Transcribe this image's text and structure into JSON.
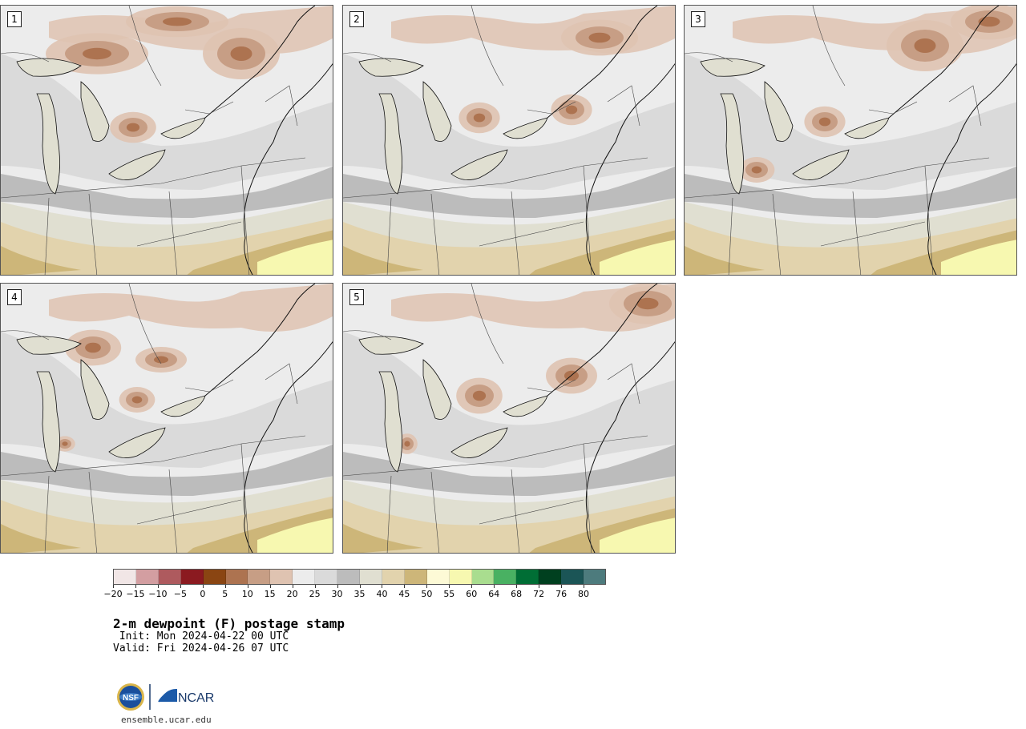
{
  "panels": [
    {
      "label": "1"
    },
    {
      "label": "2"
    },
    {
      "label": "3"
    },
    {
      "label": "4"
    },
    {
      "label": "5"
    }
  ],
  "colorbar": {
    "ticks": [
      "−20",
      "−15",
      "−10",
      "−5",
      "0",
      "5",
      "10",
      "15",
      "20",
      "25",
      "30",
      "35",
      "40",
      "45",
      "50",
      "55",
      "60",
      "64",
      "68",
      "72",
      "76",
      "80"
    ],
    "colors": [
      "#f1e6e6",
      "#d39ea1",
      "#ae5a5e",
      "#8b1a20",
      "#8a4512",
      "#ad7350",
      "#c79e85",
      "#dfc3b1",
      "#ececec",
      "#dadada",
      "#bcbcbc",
      "#e0dfd1",
      "#e2d3ad",
      "#cdb679",
      "#fdfad6",
      "#f7f8b0",
      "#a9dd8f",
      "#49b162",
      "#006e35",
      "#00401f",
      "#1b5556",
      "#4d7b7d"
    ]
  },
  "title": {
    "main": "2-m dewpoint (F) postage stamp",
    "init": " Init: Mon 2024-04-22 00 UTC",
    "valid": "Valid: Fri 2024-04-26 07 UTC"
  },
  "logo": {
    "left_text": "NSF",
    "right_text": "NCAR",
    "url": "ensemble.ucar.edu"
  }
}
